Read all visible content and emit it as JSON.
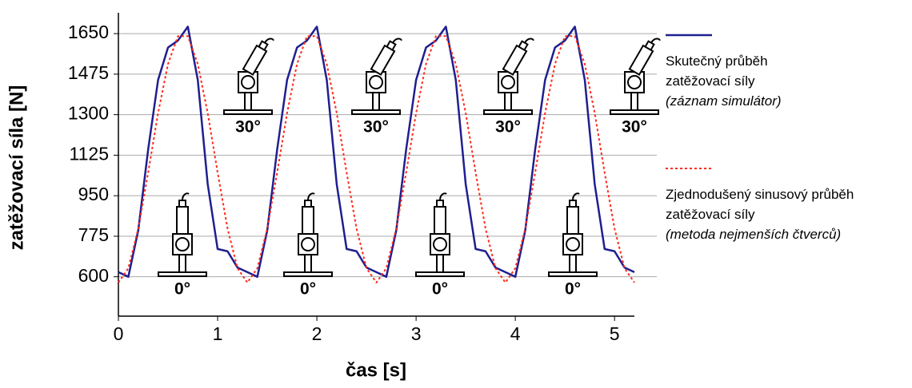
{
  "chart_data": {
    "type": "line",
    "x_label": "čas [s]",
    "y_label": "zatěžovací síla [N]",
    "x": [
      0,
      0.1,
      0.2,
      0.3,
      0.4,
      0.5,
      0.6,
      0.7,
      0.8,
      0.9,
      1.0,
      1.1,
      1.2,
      1.3,
      1.4,
      1.5,
      1.6,
      1.7,
      1.8,
      1.9,
      2.0,
      2.1,
      2.2,
      2.3,
      2.4,
      2.5,
      2.6,
      2.7,
      2.8,
      2.9,
      3.0,
      3.1,
      3.2,
      3.3,
      3.4,
      3.5,
      3.6,
      3.7,
      3.8,
      3.9,
      4.0,
      4.1,
      4.2,
      4.3,
      4.4,
      4.5,
      4.6,
      4.7,
      4.8,
      4.9,
      5.0,
      5.1,
      5.2
    ],
    "series": [
      {
        "name": "Skutečný průběh zatěžovací síly",
        "note": "(záznam simulátor)",
        "color": "#1f1f8f",
        "style": "solid",
        "values": [
          620,
          600,
          800,
          1150,
          1450,
          1590,
          1620,
          1680,
          1450,
          1000,
          720,
          710,
          640,
          620,
          600,
          800,
          1150,
          1450,
          1590,
          1620,
          1680,
          1450,
          1000,
          720,
          710,
          640,
          620,
          600,
          800,
          1150,
          1450,
          1590,
          1620,
          1680,
          1450,
          1000,
          720,
          710,
          640,
          620,
          600,
          800,
          1150,
          1450,
          1590,
          1620,
          1680,
          1450,
          1000,
          720,
          710,
          640,
          620
        ]
      },
      {
        "name": "Zjednodušený sinusový průběh zatěžovací síly",
        "note": "(metoda nejmenších čtverců)",
        "color": "#ff2a1a",
        "style": "dotted",
        "values": [
          575,
          637,
          808,
          1050,
          1307,
          1519,
          1639,
          1639,
          1519,
          1307,
          1050,
          808,
          637,
          575,
          637,
          808,
          1050,
          1307,
          1519,
          1639,
          1639,
          1519,
          1307,
          1050,
          808,
          637,
          575,
          637,
          808,
          1050,
          1307,
          1519,
          1639,
          1639,
          1519,
          1307,
          1050,
          808,
          637,
          575,
          637,
          808,
          1050,
          1307,
          1519,
          1639,
          1639,
          1519,
          1307,
          1050,
          808,
          637,
          575
        ]
      }
    ],
    "xlim": [
      0,
      5.2
    ],
    "ylim": [
      430,
      1740
    ],
    "xticks": [
      0,
      1,
      2,
      3,
      4,
      5
    ],
    "yticks": [
      600,
      775,
      950,
      1125,
      1300,
      1475,
      1650
    ],
    "grid": true,
    "annotations": [
      "30°",
      "0°"
    ]
  }
}
